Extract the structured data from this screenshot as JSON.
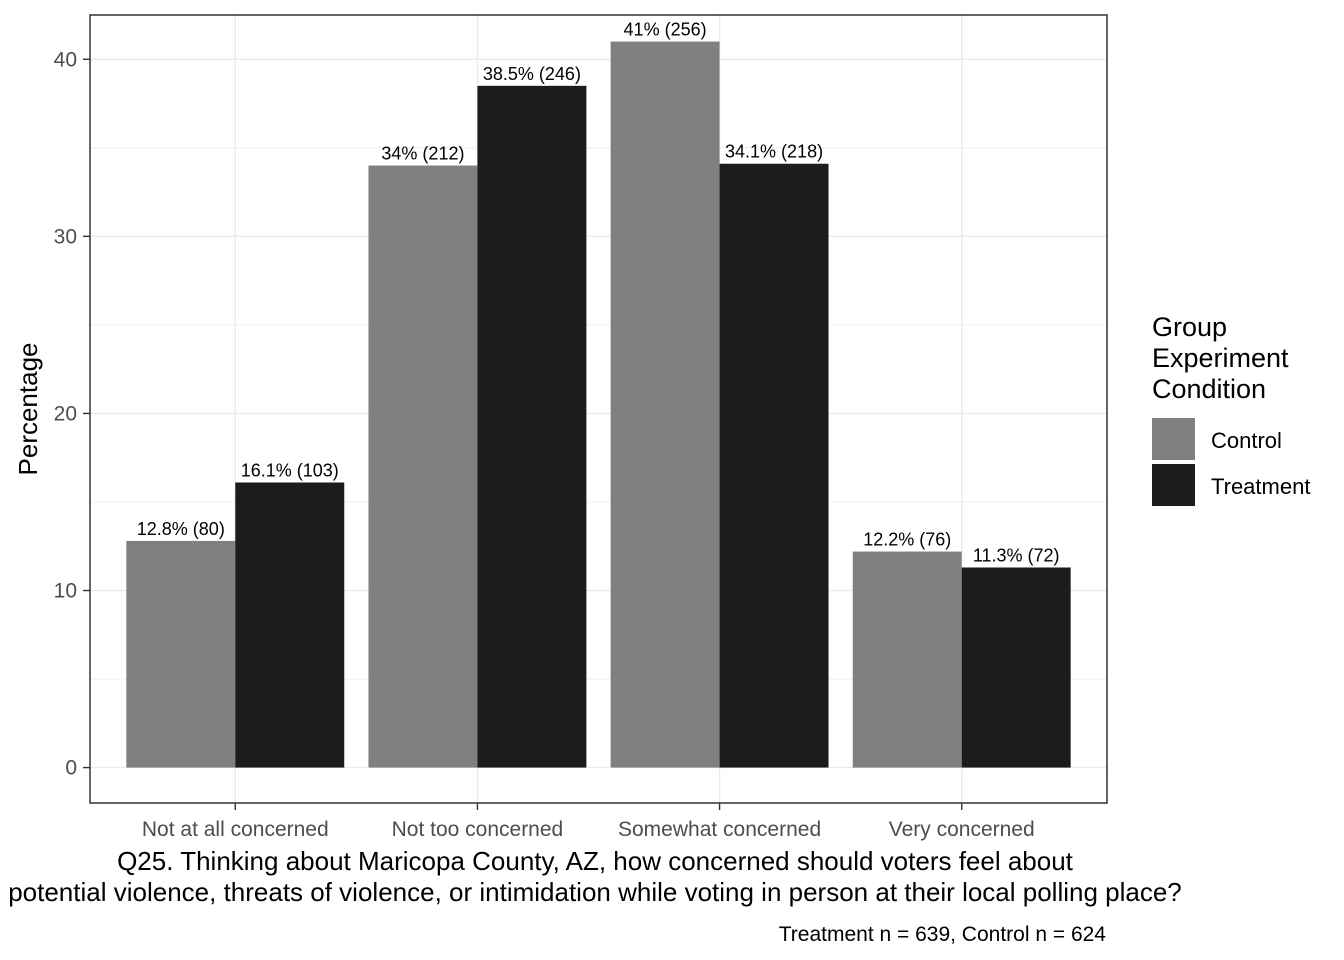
{
  "chart_data": {
    "type": "bar",
    "categories": [
      "Not at all concerned",
      "Not too concerned",
      "Somewhat concerned",
      "Very concerned"
    ],
    "series": [
      {
        "name": "Control",
        "values": [
          12.8,
          34,
          41,
          12.2
        ],
        "labels": [
          "12.8% (80)",
          "34% (212)",
          "41% (256)",
          "12.2% (76)"
        ],
        "color": "#808080"
      },
      {
        "name": "Treatment",
        "values": [
          16.1,
          38.5,
          34.1,
          11.3
        ],
        "labels": [
          "16.1% (103)",
          "38.5% (246)",
          "34.1% (218)",
          "11.3% (72)"
        ],
        "color": "#1c1c1c"
      }
    ],
    "xlabel_lines": [
      "Q25. Thinking about Maricopa County, AZ, how concerned should voters feel about",
      "potential violence, threats of violence, or intimidation while voting in person at their local polling place?"
    ],
    "ylabel": "Percentage",
    "ylim": [
      -2,
      42.5
    ],
    "yticks": [
      0,
      10,
      20,
      30,
      40
    ],
    "grid": true,
    "legend": {
      "title_lines": [
        "Group",
        "Experiment",
        "Condition"
      ],
      "position": "right"
    },
    "caption": "Treatment n = 639, Control n = 624"
  }
}
